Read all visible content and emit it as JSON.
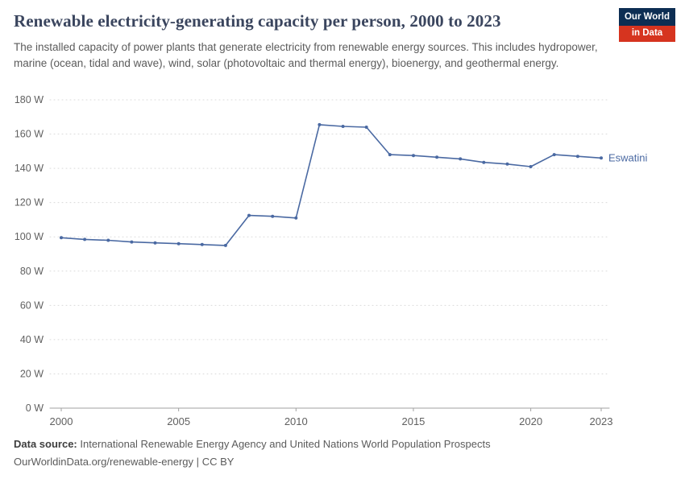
{
  "header": {
    "title": "Renewable electricity-generating capacity per person, 2000 to 2023",
    "subtitle": "The installed capacity of power plants that generate electricity from renewable energy sources. This includes hydropower, marine (ocean, tidal and wave), wind, solar (photovoltaic and thermal energy), bioenergy, and geothermal energy.",
    "logo": {
      "line1": "Our World",
      "line2": "in Data"
    }
  },
  "chart_data": {
    "type": "line",
    "title": "Renewable electricity-generating capacity per person, 2000 to 2023",
    "x": [
      2000,
      2001,
      2002,
      2003,
      2004,
      2005,
      2006,
      2007,
      2008,
      2009,
      2010,
      2011,
      2012,
      2013,
      2014,
      2015,
      2016,
      2017,
      2018,
      2019,
      2020,
      2021,
      2022,
      2023
    ],
    "series": [
      {
        "name": "Eswatini",
        "color": "#4a69a2",
        "values": [
          99.5,
          98.5,
          98,
          97,
          96.5,
          96,
          95.5,
          95,
          112.5,
          112,
          111,
          165.5,
          164.5,
          164,
          148,
          147.5,
          146.5,
          145.5,
          143.5,
          142.5,
          141,
          148,
          147,
          146
        ]
      }
    ],
    "ylim": [
      0,
      180
    ],
    "yticks": [
      0,
      20,
      40,
      60,
      80,
      100,
      120,
      140,
      160,
      180
    ],
    "y_tick_suffix": " W",
    "xticks": [
      2000,
      2005,
      2010,
      2015,
      2020,
      2023
    ],
    "grid": true,
    "legend_position": "end-of-line",
    "xlabel": "",
    "ylabel": ""
  },
  "footer": {
    "datasource_label": "Data source:",
    "datasource_text": "International Renewable Energy Agency and United Nations World Population Prospects",
    "link_text": "OurWorldinData.org/renewable-energy",
    "separator": "|",
    "license": "CC BY"
  },
  "colors": {
    "series": "#4a69a2",
    "gridline": "#dadada",
    "axis": "#a1a1a1",
    "title": "#3a455e",
    "logo_navy": "#0d2e53",
    "logo_red": "#d6341f"
  }
}
